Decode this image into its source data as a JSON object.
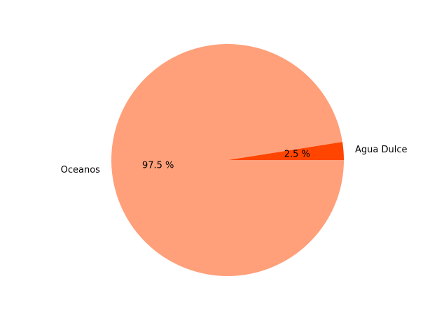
{
  "chart_data": {
    "type": "pie",
    "title": "",
    "categories": [
      "Agua Dulce",
      "Oceanos"
    ],
    "values": [
      2.5,
      97.5
    ],
    "slice_labels": [
      "2.5 %",
      "97.5 %"
    ],
    "colors": [
      "#ff4500",
      "#ffa07a"
    ],
    "start_angle_deg": 0,
    "direction": "counterclockwise",
    "legend": "none"
  }
}
